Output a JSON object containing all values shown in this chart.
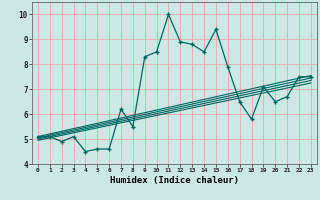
{
  "xlabel": "Humidex (Indice chaleur)",
  "bg_color": "#cce8e4",
  "grid_color": "#e8b0b0",
  "line_color": "#006660",
  "xlim": [
    -0.5,
    23.5
  ],
  "ylim": [
    4.0,
    10.5
  ],
  "xtick_labels": [
    "0",
    "1",
    "2",
    "3",
    "4",
    "5",
    "6",
    "7",
    "8",
    "9",
    "10",
    "11",
    "12",
    "13",
    "14",
    "15",
    "16",
    "17",
    "18",
    "19",
    "20",
    "21",
    "22",
    "23"
  ],
  "yticks": [
    4,
    5,
    6,
    7,
    8,
    9,
    10
  ],
  "main_x": [
    0,
    1,
    2,
    3,
    4,
    5,
    6,
    7,
    8,
    9,
    10,
    11,
    12,
    13,
    14,
    15,
    16,
    17,
    18,
    19,
    20,
    21,
    22,
    23
  ],
  "main_y": [
    5.1,
    5.1,
    4.9,
    5.1,
    4.5,
    4.6,
    4.6,
    6.2,
    5.5,
    8.3,
    8.5,
    10.0,
    8.9,
    8.8,
    8.5,
    9.4,
    7.9,
    6.5,
    5.8,
    7.1,
    6.5,
    6.7,
    7.5,
    7.5
  ],
  "reg_lines": [
    {
      "x": [
        0,
        23
      ],
      "y": [
        5.1,
        7.55
      ]
    },
    {
      "x": [
        0,
        23
      ],
      "y": [
        5.05,
        7.45
      ]
    },
    {
      "x": [
        0,
        23
      ],
      "y": [
        5.0,
        7.35
      ]
    },
    {
      "x": [
        0,
        23
      ],
      "y": [
        4.95,
        7.25
      ]
    }
  ]
}
